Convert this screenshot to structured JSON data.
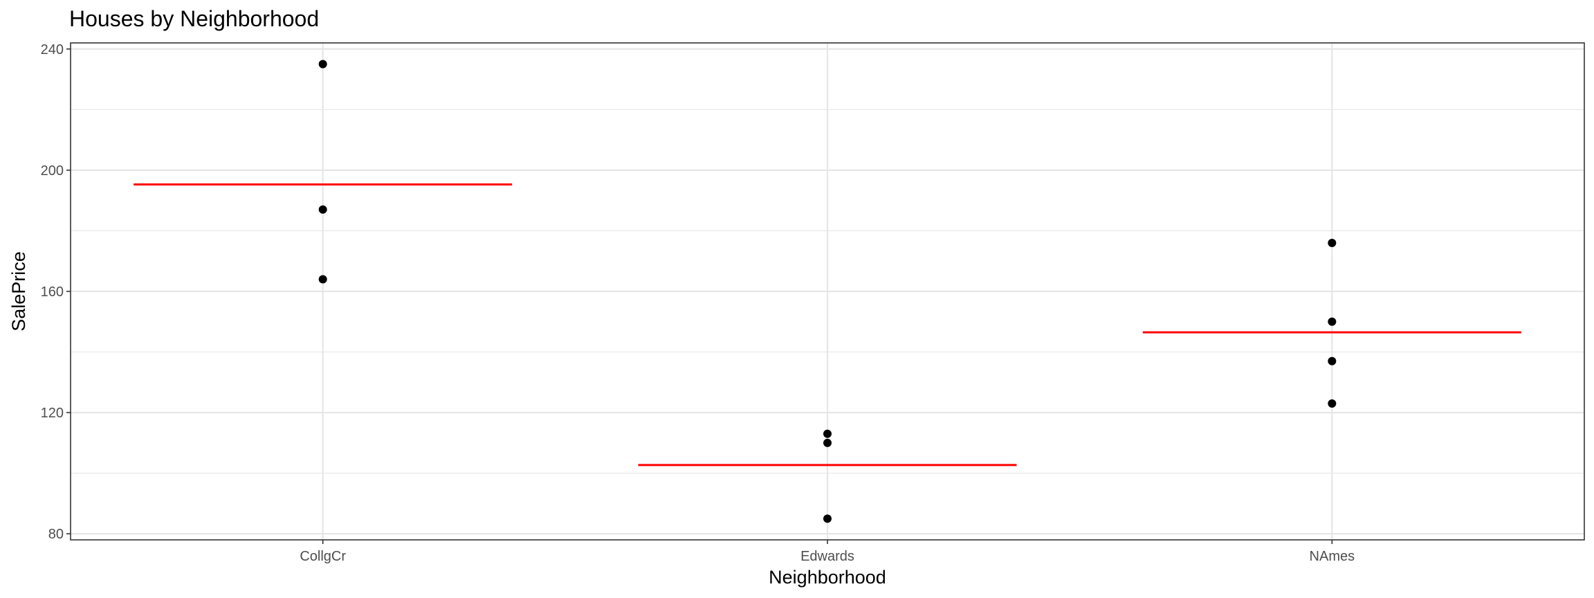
{
  "chart_data": {
    "type": "scatter",
    "title": "Houses by Neighborhood",
    "xlabel": "Neighborhood",
    "ylabel": "SalePrice",
    "categories": [
      "CollgCr",
      "Edwards",
      "NAmes"
    ],
    "ylim": [
      78,
      242
    ],
    "yticks": [
      80,
      120,
      160,
      200,
      240
    ],
    "grid": true,
    "legend": "none",
    "points": [
      {
        "category": "CollgCr",
        "y": 235
      },
      {
        "category": "CollgCr",
        "y": 187
      },
      {
        "category": "CollgCr",
        "y": 164
      },
      {
        "category": "Edwards",
        "y": 113
      },
      {
        "category": "Edwards",
        "y": 110
      },
      {
        "category": "Edwards",
        "y": 85
      },
      {
        "category": "NAmes",
        "y": 176
      },
      {
        "category": "NAmes",
        "y": 150
      },
      {
        "category": "NAmes",
        "y": 137
      },
      {
        "category": "NAmes",
        "y": 123
      }
    ],
    "means": [
      {
        "category": "CollgCr",
        "y": 195.3
      },
      {
        "category": "Edwards",
        "y": 102.7
      },
      {
        "category": "NAmes",
        "y": 146.5
      }
    ],
    "colors": {
      "points": "#000000",
      "mean_line": "#ff0000",
      "grid": "#e6e6e6",
      "panel_border": "#333333"
    }
  }
}
